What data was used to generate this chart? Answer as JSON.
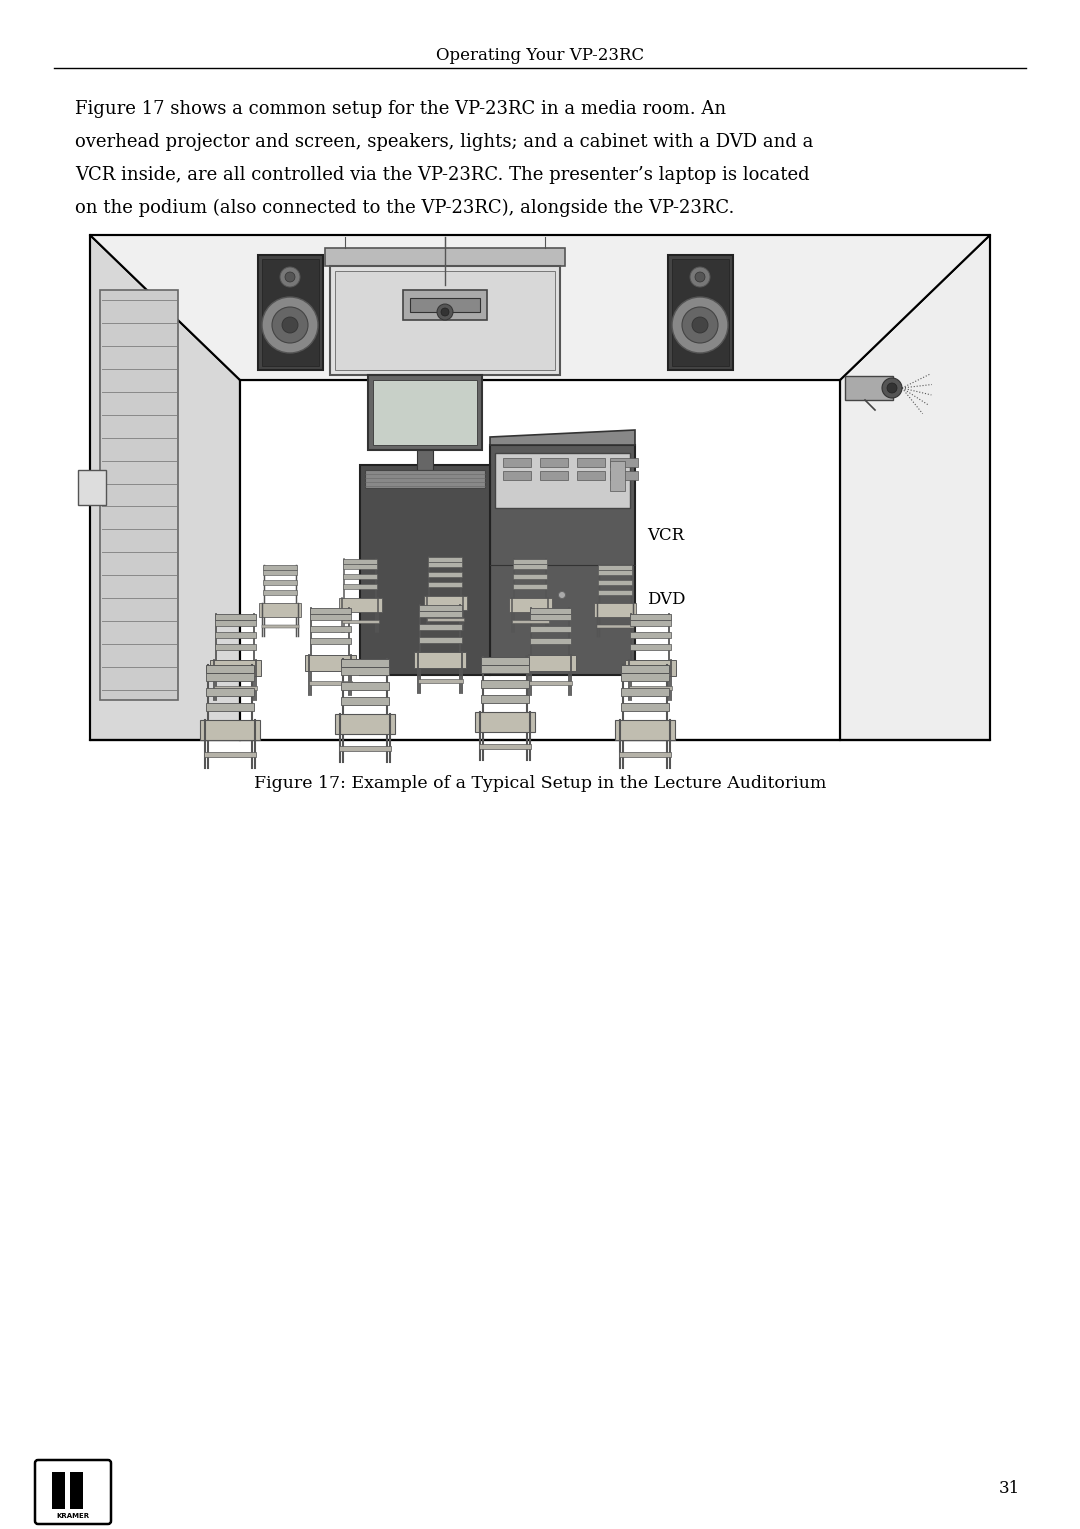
{
  "page_title": "Operating Your VP-23RC",
  "body_text_line1": "Figure 17 shows a common setup for the VP-23RC in a media room. An",
  "body_text_line2": "overhead projector and screen, speakers, lights; and a cabinet with a DVD and a",
  "body_text_line3": "VCR inside, are all controlled via the VP-23RC. The presenter’s laptop is located",
  "body_text_line4": "on the podium (also connected to the VP-23RC), alongside the VP-23RC.",
  "figure_caption": "Figure 17: Example of a Typical Setup in the Lecture Auditorium",
  "page_number": "31",
  "bg_color": "#ffffff",
  "text_color": "#000000",
  "room_wall_color": "#ffffff",
  "room_left_wall_color": "#e8e8e8",
  "room_floor_color": "#f5f5f5",
  "cabinet_dark": "#555555",
  "cabinet_mid": "#6e6e6e",
  "cabinet_light": "#999999",
  "speaker_body": "#444444",
  "chair_body": "#aaaaaa",
  "chair_seat": "#bbbbbb"
}
